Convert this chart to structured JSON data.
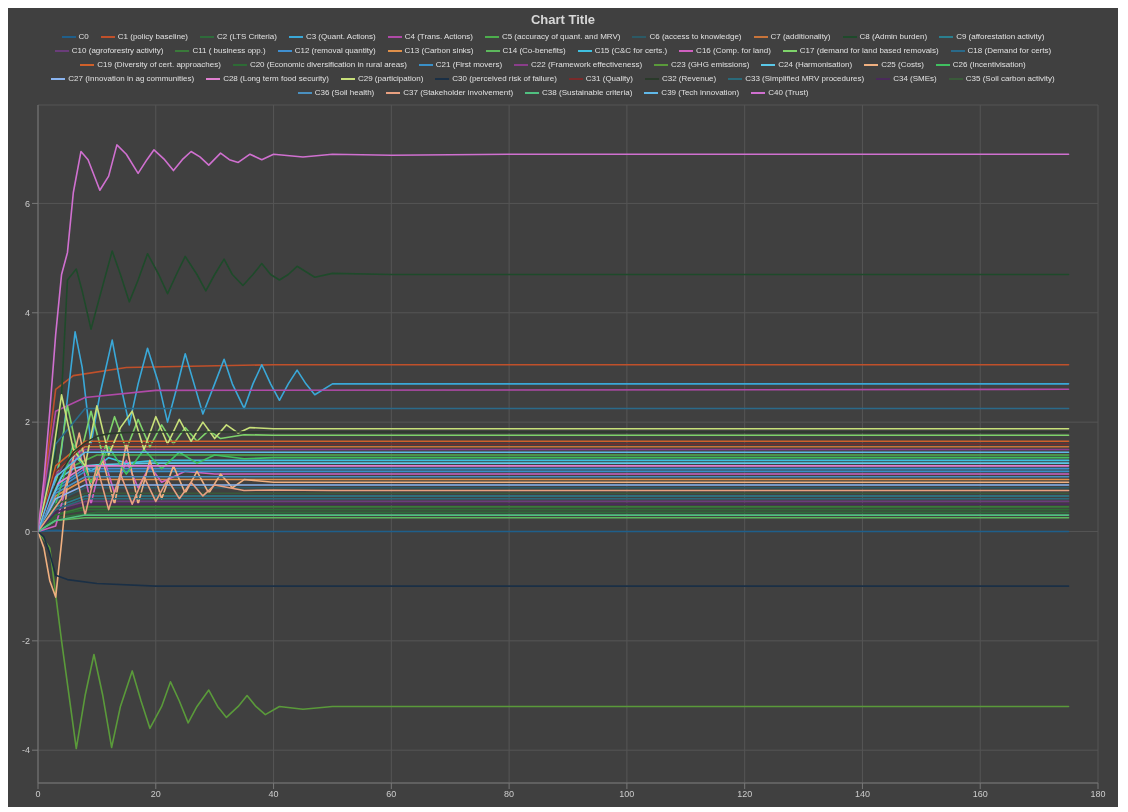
{
  "chart_data": {
    "type": "line",
    "title": "Chart Title",
    "xlim": [
      0,
      180
    ],
    "xticks": [
      0,
      20,
      40,
      60,
      80,
      100,
      120,
      140,
      160,
      180
    ],
    "ylim": [
      -4.6,
      7.8
    ],
    "yticks": [
      -4,
      -2,
      0,
      2,
      4,
      6
    ],
    "grid": true,
    "legend": "top",
    "series": [
      {
        "name": "C0",
        "color": "#1f5f8b",
        "x": [
          0,
          3,
          8,
          175
        ],
        "values": [
          0,
          0.02,
          0,
          0
        ]
      },
      {
        "name": "C1 (policy baseline)",
        "color": "#c0502a",
        "x": [
          0,
          3,
          6,
          15,
          40,
          175
        ],
        "values": [
          0,
          2.6,
          2.85,
          3.0,
          3.05,
          3.05
        ]
      },
      {
        "name": "C2 (LTS Criteria)",
        "color": "#2e6b3a",
        "x": [
          0,
          3,
          10,
          175
        ],
        "values": [
          0,
          0.25,
          0.35,
          0.35
        ]
      },
      {
        "name": "C3 (Quant. Actions)",
        "color": "#3aa8d8",
        "x": [
          0,
          2,
          4,
          6.3,
          7.5,
          9,
          10.5,
          12.6,
          14,
          15.5,
          17,
          18.6,
          20.5,
          22,
          23.5,
          25,
          26.5,
          28,
          30,
          31.6,
          33,
          35,
          36.5,
          38,
          39.5,
          41,
          42.5,
          44,
          45.5,
          47,
          50,
          60,
          80,
          175
        ],
        "values": [
          0,
          0.4,
          1.5,
          3.65,
          3.0,
          1.6,
          2.5,
          3.5,
          2.7,
          1.95,
          2.7,
          3.35,
          2.7,
          2.0,
          2.6,
          3.25,
          2.7,
          2.15,
          2.7,
          3.15,
          2.7,
          2.25,
          2.7,
          3.05,
          2.7,
          2.4,
          2.7,
          2.95,
          2.7,
          2.5,
          2.7,
          2.7,
          2.7,
          2.7
        ]
      },
      {
        "name": "C4 (Trans. Actions)",
        "color": "#b04aa8",
        "x": [
          0,
          3,
          8,
          20,
          175
        ],
        "values": [
          0,
          2.2,
          2.45,
          2.58,
          2.6
        ]
      },
      {
        "name": "C5 (accuracy of quant. and MRV)",
        "color": "#4cae4c",
        "x": [
          0,
          4,
          10,
          175
        ],
        "values": [
          0,
          1.1,
          1.4,
          1.4
        ]
      },
      {
        "name": "C6 (access to knowledge)",
        "color": "#2b5a66",
        "x": [
          0,
          3,
          8,
          175
        ],
        "values": [
          0,
          0.55,
          0.8,
          0.8
        ]
      },
      {
        "name": "C7 (additionality)",
        "color": "#c8743a",
        "x": [
          0,
          3,
          8,
          175
        ],
        "values": [
          0,
          1.1,
          1.55,
          1.55
        ]
      },
      {
        "name": "C8 (Admin burden)",
        "color": "#1e4a2a",
        "x": [
          0,
          2,
          4,
          5,
          6.5,
          7.5,
          9,
          10.5,
          12.6,
          14,
          15.5,
          17,
          18.6,
          20.5,
          22,
          23.5,
          25,
          27,
          28.5,
          30,
          31.6,
          33,
          34.8,
          36.5,
          38,
          39.5,
          41,
          42.5,
          44,
          47,
          50,
          60,
          80,
          175
        ],
        "values": [
          0,
          0.5,
          2.5,
          4.6,
          4.8,
          4.4,
          3.7,
          4.3,
          5.13,
          4.7,
          4.2,
          4.6,
          5.08,
          4.7,
          4.35,
          4.7,
          5.03,
          4.7,
          4.4,
          4.7,
          4.98,
          4.7,
          4.5,
          4.7,
          4.9,
          4.7,
          4.6,
          4.7,
          4.85,
          4.65,
          4.72,
          4.7,
          4.7,
          4.7
        ]
      },
      {
        "name": "C9 (afforestation activity)",
        "color": "#2a7f8f",
        "x": [
          0,
          3,
          8,
          175
        ],
        "values": [
          0,
          0.45,
          0.65,
          0.65
        ]
      },
      {
        "name": "C10 (agroforestry activity)",
        "color": "#6a3d7a",
        "x": [
          0,
          3,
          8,
          175
        ],
        "values": [
          0,
          0.4,
          0.55,
          0.55
        ]
      },
      {
        "name": "C11 ( business opp.)",
        "color": "#3a7a3a",
        "x": [
          0,
          3,
          8,
          175
        ],
        "values": [
          0,
          0.3,
          0.45,
          0.45
        ]
      },
      {
        "name": "C12 (removal quantity)",
        "color": "#3f8fd0",
        "x": [
          0,
          3,
          8,
          175
        ],
        "values": [
          0,
          0.8,
          1.15,
          1.15
        ]
      },
      {
        "name": "C13 (Carbon sinks)",
        "color": "#e0904a",
        "x": [
          0,
          3,
          8,
          175
        ],
        "values": [
          0,
          0.65,
          0.95,
          0.95
        ]
      },
      {
        "name": "C14 (Co-benefits)",
        "color": "#5cb85c",
        "x": [
          0,
          3,
          8,
          175
        ],
        "values": [
          0,
          0.2,
          0.25,
          0.25
        ]
      },
      {
        "name": "C15 (C&C for certs.)",
        "color": "#3fc0e0",
        "x": [
          0,
          3,
          6,
          9,
          12,
          15,
          20,
          30,
          175
        ],
        "values": [
          0,
          0.8,
          1.4,
          1.1,
          1.35,
          1.25,
          1.3,
          1.3,
          1.3
        ]
      },
      {
        "name": "C16 (Comp. for land)",
        "color": "#d060c0",
        "x": [
          0,
          3,
          5,
          7,
          9,
          11,
          13,
          15,
          17,
          19,
          21,
          25,
          30,
          40,
          175
        ],
        "values": [
          0,
          0.1,
          0.9,
          1.5,
          0.5,
          1.4,
          0.7,
          1.3,
          0.8,
          1.2,
          0.9,
          1.1,
          1.05,
          1.05,
          1.05
        ]
      },
      {
        "name": "C17 (demand for land based removals)",
        "color": "#7ed36a",
        "x": [
          0,
          3,
          5,
          7,
          9,
          11,
          13,
          15,
          17,
          19,
          21,
          23,
          25,
          27,
          29,
          31,
          35,
          40,
          50,
          175
        ],
        "values": [
          0,
          0.8,
          2.3,
          1.3,
          2.2,
          1.4,
          2.1,
          1.5,
          2.05,
          1.55,
          1.95,
          1.6,
          1.9,
          1.65,
          1.85,
          1.7,
          1.77,
          1.76,
          1.76,
          1.76
        ]
      },
      {
        "name": "C18 (Demand for certs)",
        "color": "#2a6a8a",
        "x": [
          0,
          3,
          8,
          175
        ],
        "values": [
          0,
          1.6,
          2.25,
          2.25
        ]
      },
      {
        "name": "C19 (Diversity of cert. approaches)",
        "color": "#d0602a",
        "x": [
          0,
          3,
          8,
          175
        ],
        "values": [
          0,
          1.2,
          1.65,
          1.65
        ]
      },
      {
        "name": "C20 (Economic diversification in rural areas)",
        "color": "#2d6b35",
        "x": [
          0,
          3,
          8,
          175
        ],
        "values": [
          0,
          0.3,
          0.4,
          0.4
        ]
      },
      {
        "name": "C21 (First movers)",
        "color": "#3a90c8",
        "x": [
          0,
          3,
          8,
          175
        ],
        "values": [
          0,
          0.75,
          1.1,
          1.1
        ]
      },
      {
        "name": "C22 (Framework effectiveness)",
        "color": "#8a3d8a",
        "x": [
          0,
          3,
          8,
          175
        ],
        "values": [
          0,
          1.05,
          1.5,
          1.5
        ]
      },
      {
        "name": "C23 (GHG emissions)",
        "color": "#5a9a3a",
        "x": [
          0,
          2,
          4,
          6.5,
          8,
          9.5,
          11,
          12.5,
          14,
          16,
          17.5,
          19,
          21,
          22.5,
          24,
          25.5,
          27,
          29,
          30.5,
          32,
          34,
          35.5,
          37,
          38.6,
          41,
          45,
          50,
          60,
          175
        ],
        "values": [
          0,
          -0.3,
          -2.0,
          -3.97,
          -3.0,
          -2.25,
          -3.0,
          -3.95,
          -3.2,
          -2.55,
          -3.1,
          -3.6,
          -3.2,
          -2.75,
          -3.1,
          -3.5,
          -3.2,
          -2.9,
          -3.2,
          -3.4,
          -3.2,
          -3.0,
          -3.2,
          -3.35,
          -3.2,
          -3.25,
          -3.2,
          -3.2,
          -3.2
        ]
      },
      {
        "name": "C24 (Harmonisation)",
        "color": "#5ac8e8",
        "x": [
          0,
          2,
          4,
          6,
          8,
          10,
          15,
          20,
          30,
          175
        ],
        "values": [
          0,
          0.5,
          1.0,
          1.15,
          1.2,
          1.22,
          1.24,
          1.25,
          1.25,
          1.25
        ]
      },
      {
        "name": "C25 (Costs)",
        "color": "#f0b080",
        "x": [
          0,
          1,
          2,
          3,
          4,
          5,
          7,
          9,
          11,
          13,
          15,
          17,
          19,
          21,
          23,
          25,
          27,
          29,
          31,
          33,
          35,
          40,
          50,
          175
        ],
        "values": [
          0,
          -0.3,
          -0.9,
          -1.2,
          -0.2,
          0.9,
          1.8,
          0.8,
          1.3,
          0.5,
          1.6,
          0.5,
          1.3,
          0.6,
          1.2,
          0.7,
          1.1,
          0.7,
          1.05,
          0.8,
          0.95,
          0.9,
          0.9,
          0.9
        ]
      },
      {
        "name": "C26 (Incentivisation)",
        "color": "#40c060",
        "x": [
          0,
          3,
          6,
          9,
          12,
          15,
          18,
          21,
          24,
          27,
          30,
          35,
          40,
          60,
          175
        ],
        "values": [
          0,
          0.5,
          1.6,
          0.9,
          1.55,
          1.05,
          1.5,
          1.15,
          1.45,
          1.25,
          1.4,
          1.33,
          1.35,
          1.35,
          1.35
        ]
      },
      {
        "name": "C27 (Innovation in ag communities)",
        "color": "#8ab4f0",
        "x": [
          0,
          3,
          8,
          175
        ],
        "values": [
          0,
          0.6,
          0.85,
          0.85
        ]
      },
      {
        "name": "C28 (Long term food security)",
        "color": "#e080d0",
        "x": [
          0,
          3,
          8,
          175
        ],
        "values": [
          0,
          0.85,
          1.2,
          1.2
        ]
      },
      {
        "name": "C29 (participation)",
        "color": "#c8e07a",
        "x": [
          0,
          2,
          4,
          6,
          8,
          10,
          12,
          14,
          16,
          18,
          20,
          22,
          24,
          26,
          28,
          30,
          32,
          34,
          36,
          40,
          45,
          50,
          60,
          175
        ],
        "values": [
          0,
          1.0,
          2.5,
          1.5,
          1.2,
          2.3,
          1.4,
          1.9,
          2.2,
          1.5,
          2.1,
          1.6,
          2.05,
          1.65,
          2.0,
          1.7,
          1.95,
          1.8,
          1.9,
          1.88,
          1.88,
          1.88,
          1.88,
          1.88
        ]
      },
      {
        "name": "C30 (perceived risk of failure)",
        "color": "#1a2f45",
        "x": [
          0,
          1,
          2,
          3,
          5,
          10,
          20,
          40,
          175
        ],
        "values": [
          0,
          -0.1,
          -0.4,
          -0.8,
          -0.88,
          -0.95,
          -1.0,
          -1.0,
          -1.0
        ]
      },
      {
        "name": "C31 (Quality)",
        "color": "#7a2a2a",
        "x": [
          0,
          3,
          8,
          175
        ],
        "values": [
          0,
          1.1,
          1.6,
          1.6
        ]
      },
      {
        "name": "C32 (Revenue)",
        "color": "#2a3a2a",
        "x": [
          0,
          2,
          4,
          6,
          8,
          10,
          12,
          15,
          20,
          30,
          175
        ],
        "values": [
          0,
          0.6,
          1.1,
          1.45,
          1.62,
          1.74,
          1.79,
          1.81,
          1.82,
          1.82,
          1.82
        ]
      },
      {
        "name": "C33 (Simplified MRV procedures)",
        "color": "#2a6a7a",
        "x": [
          0,
          3,
          8,
          175
        ],
        "values": [
          0,
          0.4,
          0.6,
          0.6
        ]
      },
      {
        "name": "C34 (SMEs)",
        "color": "#4a2a5a",
        "x": [
          0,
          3,
          8,
          175
        ],
        "values": [
          0,
          0.35,
          0.5,
          0.5
        ]
      },
      {
        "name": "C35 (Soil carbon activity)",
        "color": "#3a5a3a",
        "x": [
          0,
          3,
          8,
          175
        ],
        "values": [
          0,
          0.5,
          0.7,
          0.7
        ]
      },
      {
        "name": "C36 (Soil health)",
        "color": "#4a90c0",
        "x": [
          0,
          3,
          8,
          175
        ],
        "values": [
          0,
          0.7,
          1.0,
          1.0
        ]
      },
      {
        "name": "C37 (Stakeholder involvement)",
        "color": "#e8a080",
        "x": [
          0,
          4,
          6,
          8,
          10,
          12,
          14,
          16,
          18,
          20,
          22,
          24,
          26,
          28,
          30,
          35,
          40,
          50,
          175
        ],
        "values": [
          0,
          0.6,
          1.3,
          0.3,
          1.2,
          0.4,
          1.05,
          0.5,
          1.0,
          0.55,
          0.95,
          0.6,
          0.9,
          0.65,
          0.85,
          0.75,
          0.76,
          0.75,
          0.75
        ]
      },
      {
        "name": "C38 (Sustainable criteria)",
        "color": "#50c080",
        "x": [
          0,
          3,
          8,
          175
        ],
        "values": [
          0,
          0.2,
          0.3,
          0.3
        ]
      },
      {
        "name": "C39 (Tech innovation)",
        "color": "#60b8e8",
        "x": [
          0,
          3,
          8,
          175
        ],
        "values": [
          0,
          1.0,
          1.45,
          1.45
        ]
      },
      {
        "name": "C40 (Trust)",
        "color": "#d070d0",
        "x": [
          0,
          1,
          2,
          3,
          4,
          5,
          6,
          7.3,
          8.5,
          10.5,
          12,
          13.4,
          15,
          17,
          18.5,
          19.7,
          21.5,
          23,
          24.5,
          26,
          27.5,
          29,
          31,
          32.5,
          34,
          36,
          38,
          40,
          45,
          50,
          60,
          80,
          120,
          175
        ],
        "values": [
          0,
          0.95,
          2.2,
          3.6,
          4.7,
          5.1,
          6.2,
          6.95,
          6.8,
          6.24,
          6.5,
          7.07,
          6.9,
          6.55,
          6.8,
          6.98,
          6.8,
          6.6,
          6.8,
          6.95,
          6.85,
          6.7,
          6.92,
          6.8,
          6.75,
          6.9,
          6.8,
          6.9,
          6.85,
          6.9,
          6.88,
          6.9,
          6.9,
          6.9
        ]
      }
    ]
  }
}
